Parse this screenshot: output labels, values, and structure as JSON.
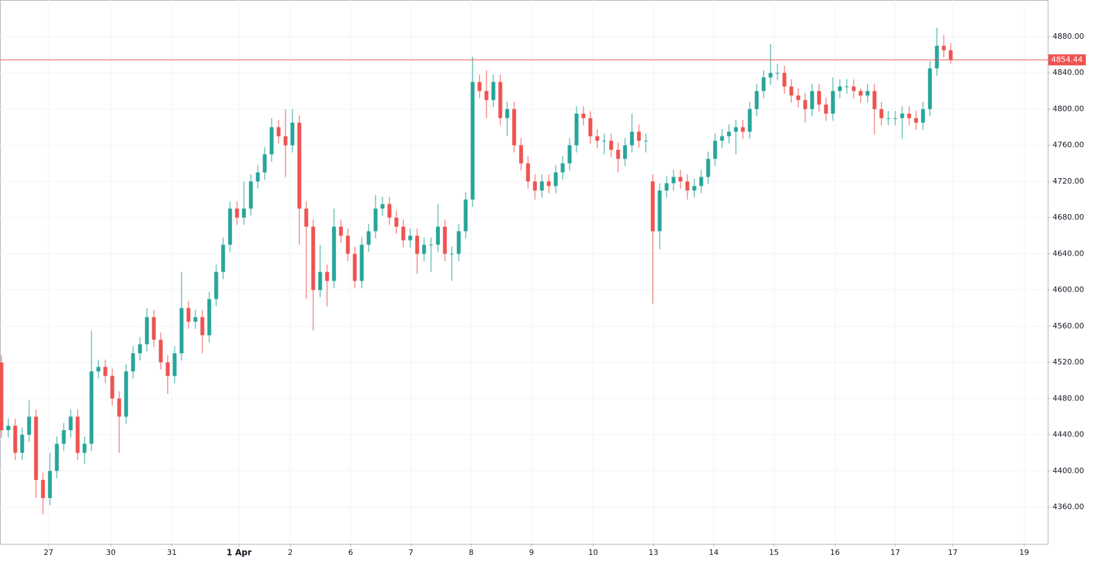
{
  "chart_data": {
    "type": "candlestick",
    "open": [
      4520,
      4445,
      4450,
      4420,
      4440,
      4460,
      4390,
      4370,
      4400,
      4430,
      4445,
      4460,
      4420,
      4430,
      4510,
      4515,
      4505,
      4480,
      4460,
      4510,
      4530,
      4540,
      4570,
      4545,
      4520,
      4505,
      4530,
      4580,
      4565,
      4570,
      4550,
      4590,
      4620,
      4650,
      4690,
      4680,
      4690,
      4720,
      4730,
      4750,
      4780,
      4770,
      4760,
      4785,
      4690,
      4670,
      4600,
      4620,
      4610,
      4670,
      4660,
      4640,
      4610,
      4650,
      4665,
      4690,
      4695,
      4680,
      4670,
      4655,
      4660,
      4640,
      4650,
      4650,
      4670,
      4640,
      4640,
      4665,
      4700,
      4830,
      4820,
      4810,
      4830,
      4790,
      4800,
      4760,
      4740,
      4720,
      4710,
      4720,
      4715,
      4730,
      4740,
      4760,
      4795,
      4790,
      4770,
      4765,
      4765,
      4755,
      4745,
      4760,
      4775,
      4765,
      4720,
      4665,
      4710,
      4718,
      4725,
      4720,
      4710,
      4715,
      4725,
      4745,
      4765,
      4770,
      4775,
      4780,
      4775,
      4800,
      4820,
      4835,
      4840,
      4840,
      4825,
      4815,
      4810,
      4800,
      4820,
      4805,
      4795,
      4820,
      4825,
      4825,
      4820,
      4815,
      4820,
      4800,
      4790,
      4790,
      4790,
      4795,
      4790,
      4785,
      4800,
      4845,
      4870,
      4865
    ],
    "high": [
      4528,
      4458,
      4458,
      4448,
      4478,
      4468,
      4398,
      4420,
      4438,
      4453,
      4468,
      4468,
      4438,
      4555,
      4523,
      4523,
      4513,
      4488,
      4518,
      4538,
      4548,
      4580,
      4578,
      4553,
      4528,
      4538,
      4620,
      4588,
      4578,
      4578,
      4598,
      4628,
      4658,
      4698,
      4698,
      4720,
      4728,
      4738,
      4758,
      4790,
      4788,
      4800,
      4800,
      4793,
      4698,
      4678,
      4650,
      4628,
      4690,
      4678,
      4668,
      4648,
      4658,
      4673,
      4705,
      4703,
      4703,
      4688,
      4678,
      4668,
      4668,
      4658,
      4658,
      4695,
      4678,
      4648,
      4673,
      4708,
      4858,
      4838,
      4843,
      4838,
      4838,
      4808,
      4808,
      4768,
      4748,
      4728,
      4728,
      4728,
      4738,
      4748,
      4768,
      4803,
      4803,
      4798,
      4778,
      4773,
      4773,
      4763,
      4768,
      4795,
      4783,
      4773,
      4728,
      4718,
      4726,
      4733,
      4733,
      4728,
      4723,
      4733,
      4753,
      4773,
      4778,
      4783,
      4788,
      4788,
      4808,
      4828,
      4843,
      4872,
      4850,
      4848,
      4833,
      4823,
      4818,
      4828,
      4828,
      4813,
      4835,
      4833,
      4833,
      4833,
      4823,
      4828,
      4828,
      4808,
      4798,
      4798,
      4803,
      4803,
      4798,
      4808,
      4853,
      4890,
      4882,
      4873
    ],
    "low": [
      4437,
      4437,
      4412,
      4412,
      4432,
      4370,
      4352,
      4362,
      4392,
      4422,
      4437,
      4412,
      4408,
      4422,
      4502,
      4497,
      4472,
      4420,
      4452,
      4502,
      4522,
      4532,
      4537,
      4512,
      4485,
      4497,
      4522,
      4557,
      4557,
      4530,
      4542,
      4582,
      4612,
      4642,
      4672,
      4672,
      4682,
      4712,
      4722,
      4742,
      4762,
      4725,
      4752,
      4650,
      4590,
      4555,
      4592,
      4582,
      4602,
      4652,
      4632,
      4602,
      4602,
      4642,
      4657,
      4682,
      4672,
      4662,
      4647,
      4647,
      4618,
      4632,
      4620,
      4642,
      4632,
      4610,
      4632,
      4657,
      4692,
      4812,
      4790,
      4802,
      4782,
      4770,
      4752,
      4732,
      4712,
      4700,
      4702,
      4707,
      4707,
      4722,
      4732,
      4752,
      4782,
      4762,
      4757,
      4750,
      4747,
      4730,
      4737,
      4752,
      4757,
      4752,
      4585,
      4645,
      4702,
      4710,
      4712,
      4700,
      4702,
      4707,
      4717,
      4737,
      4757,
      4762,
      4750,
      4767,
      4767,
      4792,
      4812,
      4827,
      4832,
      4817,
      4807,
      4802,
      4785,
      4792,
      4797,
      4787,
      4787,
      4812,
      4817,
      4812,
      4807,
      4807,
      4772,
      4782,
      4782,
      4782,
      4767,
      4782,
      4777,
      4777,
      4792,
      4837,
      4857,
      4850
    ],
    "close": [
      4445,
      4450,
      4420,
      4440,
      4460,
      4390,
      4370,
      4400,
      4430,
      4445,
      4460,
      4420,
      4430,
      4510,
      4515,
      4505,
      4480,
      4460,
      4510,
      4530,
      4540,
      4570,
      4545,
      4520,
      4505,
      4530,
      4580,
      4565,
      4570,
      4550,
      4590,
      4620,
      4650,
      4690,
      4680,
      4690,
      4720,
      4730,
      4750,
      4780,
      4770,
      4760,
      4785,
      4690,
      4670,
      4600,
      4620,
      4610,
      4670,
      4660,
      4640,
      4610,
      4650,
      4665,
      4690,
      4695,
      4680,
      4670,
      4655,
      4660,
      4640,
      4650,
      4650,
      4670,
      4640,
      4640,
      4665,
      4700,
      4830,
      4820,
      4810,
      4830,
      4790,
      4800,
      4760,
      4740,
      4720,
      4710,
      4720,
      4715,
      4730,
      4740,
      4760,
      4795,
      4790,
      4770,
      4765,
      4765,
      4755,
      4745,
      4760,
      4775,
      4765,
      4765,
      4665,
      4710,
      4718,
      4725,
      4720,
      4710,
      4715,
      4725,
      4745,
      4765,
      4770,
      4775,
      4780,
      4775,
      4800,
      4820,
      4835,
      4840,
      4840,
      4825,
      4815,
      4810,
      4800,
      4820,
      4805,
      4795,
      4820,
      4825,
      4825,
      4820,
      4815,
      4820,
      4800,
      4790,
      4790,
      4790,
      4795,
      4790,
      4785,
      4800,
      4845,
      4870,
      4865,
      4854.44
    ],
    "up_color": "#26a69a",
    "down_color": "#ef5350",
    "last_price": 4854.44,
    "last_price_color": "#ef5350",
    "xlim": [
      -0.2,
      151
    ],
    "xticks": [
      {
        "value": 6.8,
        "label": "27"
      },
      {
        "value": 15.8,
        "label": "30"
      },
      {
        "value": 24.6,
        "label": "31"
      },
      {
        "value": 34.3,
        "label": "1 Apr"
      },
      {
        "value": 41.7,
        "label": "2"
      },
      {
        "value": 50.4,
        "label": "6"
      },
      {
        "value": 59.1,
        "label": "7"
      },
      {
        "value": 67.8,
        "label": "8"
      },
      {
        "value": 76.5,
        "label": "9"
      },
      {
        "value": 85.4,
        "label": "10"
      },
      {
        "value": 94.1,
        "label": "13"
      },
      {
        "value": 102.8,
        "label": "14"
      },
      {
        "value": 111.5,
        "label": "15"
      },
      {
        "value": 120.3,
        "label": "16"
      },
      {
        "value": 129,
        "label": "17"
      },
      {
        "value": 137.3,
        "label": "17"
      },
      {
        "value": 147.6,
        "label": "19"
      }
    ],
    "ylim": [
      4319.4,
      4920.6
    ],
    "yticks": [
      {
        "value": 4360,
        "label": "4360.00"
      },
      {
        "value": 4400,
        "label": "4400.00"
      },
      {
        "value": 4440,
        "label": "4440.00"
      },
      {
        "value": 4480,
        "label": "4480.00"
      },
      {
        "value": 4520,
        "label": "4520.00"
      },
      {
        "value": 4560,
        "label": "4560.00"
      },
      {
        "value": 4600,
        "label": "4600.00"
      },
      {
        "value": 4640,
        "label": "4640.00"
      },
      {
        "value": 4680,
        "label": "4680.00"
      },
      {
        "value": 4720,
        "label": "4720.00"
      },
      {
        "value": 4760,
        "label": "4760.00"
      },
      {
        "value": 4800,
        "label": "4800.00"
      },
      {
        "value": 4840,
        "label": "4840.00"
      },
      {
        "value": 4880,
        "label": "4880.00"
      }
    ],
    "grid": true
  }
}
